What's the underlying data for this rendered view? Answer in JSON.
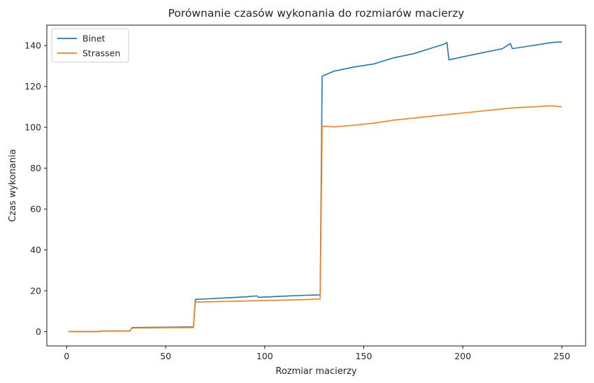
{
  "chart_data": {
    "type": "line",
    "title": "Porównanie czasów wykonania do rozmiarów macierzy",
    "xlabel": "Rozmiar macierzy",
    "ylabel": "Czas wykonania",
    "xlim": [
      -10,
      262
    ],
    "ylim": [
      -7,
      150
    ],
    "xticks": [
      0,
      50,
      100,
      150,
      200,
      250
    ],
    "yticks": [
      0,
      20,
      40,
      60,
      80,
      100,
      120,
      140
    ],
    "grid": false,
    "legend_position": "top-left",
    "series": [
      {
        "name": "Binet",
        "color": "#1f77b4",
        "points": [
          [
            1,
            0.1
          ],
          [
            16,
            0.1
          ],
          [
            17,
            0.3
          ],
          [
            32,
            0.4
          ],
          [
            33,
            2.0
          ],
          [
            64,
            2.3
          ],
          [
            65,
            15.8
          ],
          [
            70,
            16.0
          ],
          [
            80,
            16.5
          ],
          [
            90,
            17.0
          ],
          [
            96,
            17.5
          ],
          [
            97,
            16.8
          ],
          [
            110,
            17.4
          ],
          [
            120,
            17.8
          ],
          [
            128,
            18.0
          ],
          [
            129,
            125.0
          ],
          [
            135,
            127.5
          ],
          [
            145,
            129.5
          ],
          [
            155,
            131.0
          ],
          [
            165,
            134.0
          ],
          [
            175,
            136.0
          ],
          [
            185,
            139.0
          ],
          [
            190,
            140.5
          ],
          [
            192,
            141.5
          ],
          [
            193,
            133.0
          ],
          [
            200,
            134.5
          ],
          [
            210,
            136.5
          ],
          [
            220,
            138.5
          ],
          [
            224,
            141.0
          ],
          [
            225,
            138.5
          ],
          [
            235,
            140.0
          ],
          [
            245,
            141.5
          ],
          [
            250,
            141.8
          ]
        ]
      },
      {
        "name": "Strassen",
        "color": "#ff7f0e",
        "points": [
          [
            1,
            0.0
          ],
          [
            16,
            0.0
          ],
          [
            17,
            0.2
          ],
          [
            32,
            0.3
          ],
          [
            33,
            1.8
          ],
          [
            64,
            2.0
          ],
          [
            65,
            14.5
          ],
          [
            80,
            14.8
          ],
          [
            100,
            15.2
          ],
          [
            120,
            15.7
          ],
          [
            128,
            16.0
          ],
          [
            129,
            100.5
          ],
          [
            135,
            100.2
          ],
          [
            145,
            101.0
          ],
          [
            155,
            102.0
          ],
          [
            165,
            103.5
          ],
          [
            175,
            104.5
          ],
          [
            185,
            105.5
          ],
          [
            195,
            106.5
          ],
          [
            205,
            107.5
          ],
          [
            215,
            108.5
          ],
          [
            225,
            109.5
          ],
          [
            235,
            110.0
          ],
          [
            245,
            110.5
          ],
          [
            250,
            110.0
          ]
        ]
      }
    ]
  }
}
